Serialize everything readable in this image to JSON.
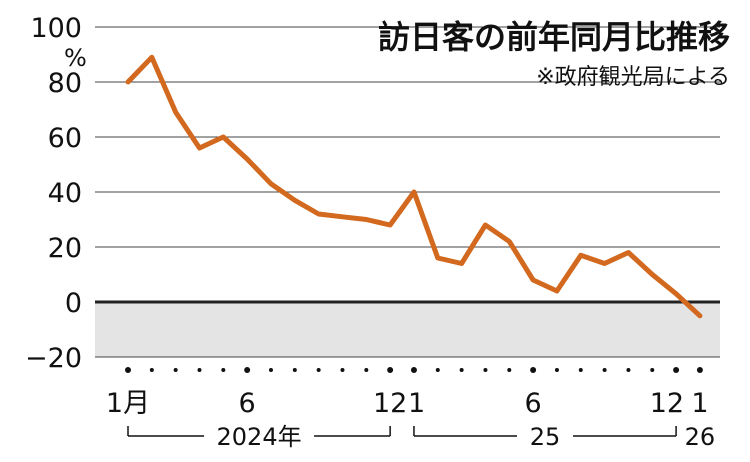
{
  "chart_data": {
    "type": "line",
    "title": "訪日客の前年同月比推移",
    "source_note": "※政府観光局による",
    "unit": "%",
    "ylim": [
      -20,
      100
    ],
    "yticks": [
      "100",
      "80",
      "60",
      "40",
      "20",
      "0",
      "−20"
    ],
    "x": [
      "2024-01",
      "2024-02",
      "2024-03",
      "2024-04",
      "2024-05",
      "2024-06",
      "2024-07",
      "2024-08",
      "2024-09",
      "2024-10",
      "2024-11",
      "2024-12",
      "2025-01",
      "2025-02",
      "2025-03",
      "2025-04",
      "2025-05",
      "2025-06",
      "2025-07",
      "2025-08",
      "2025-09",
      "2025-10",
      "2025-11",
      "2025-12",
      "2026-01"
    ],
    "x_tick_labels": [
      {
        "index": 0,
        "label": "1月"
      },
      {
        "index": 5,
        "label": "6"
      },
      {
        "index": 11,
        "label": "12"
      },
      {
        "index": 12,
        "label": "1"
      },
      {
        "index": 17,
        "label": "6"
      },
      {
        "index": 23,
        "label": "12"
      },
      {
        "index": 24,
        "label": "1"
      }
    ],
    "year_labels": [
      {
        "label": "2024年",
        "from": 0,
        "to": 11
      },
      {
        "label": "25",
        "from": 12,
        "to": 23
      },
      {
        "label": "26",
        "from": 24,
        "to": 24
      }
    ],
    "series": [
      {
        "values": [
          80,
          89,
          69,
          56,
          60,
          52,
          43,
          37,
          32,
          31,
          30,
          28,
          40,
          16,
          14,
          28,
          22,
          8,
          4,
          17,
          14,
          18,
          10,
          3,
          -5
        ],
        "color": "#d2691e"
      }
    ],
    "grid": true,
    "colors": {
      "line": "#d2691e",
      "negative_fill": "#e4e4e4",
      "grid": "#444444",
      "zero_line": "#222222"
    }
  }
}
